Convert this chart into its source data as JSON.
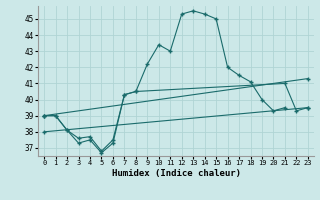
{
  "xlabel": "Humidex (Indice chaleur)",
  "background_color": "#cce8e8",
  "grid_color": "#b0d4d4",
  "line_color": "#1a6b6b",
  "xlim": [
    -0.5,
    23.5
  ],
  "ylim": [
    36.5,
    45.8
  ],
  "yticks": [
    37,
    38,
    39,
    40,
    41,
    42,
    43,
    44,
    45
  ],
  "xticks": [
    0,
    1,
    2,
    3,
    4,
    5,
    6,
    7,
    8,
    9,
    10,
    11,
    12,
    13,
    14,
    15,
    16,
    17,
    18,
    19,
    20,
    21,
    22,
    23
  ],
  "lines": [
    {
      "x": [
        0,
        1,
        2,
        3,
        4,
        5,
        6,
        7,
        8,
        9,
        10,
        11,
        12,
        13,
        14,
        15,
        16,
        17,
        18,
        19,
        20,
        21,
        22,
        23
      ],
      "y": [
        39.0,
        39.0,
        38.1,
        37.3,
        37.5,
        36.7,
        37.3,
        40.3,
        40.5,
        42.2,
        43.4,
        43.0,
        45.3,
        45.5,
        45.3,
        45.0,
        42.0,
        41.5,
        41.1,
        40.0,
        39.3,
        39.5,
        null,
        null
      ]
    },
    {
      "x": [
        0,
        23
      ],
      "y": [
        39.0,
        41.3
      ]
    },
    {
      "x": [
        0,
        23
      ],
      "y": [
        38.0,
        39.5
      ]
    },
    {
      "x": [
        0,
        1,
        2,
        3,
        4,
        5,
        6,
        7,
        8,
        21,
        22,
        23
      ],
      "y": [
        39.0,
        39.0,
        38.1,
        37.6,
        37.7,
        36.8,
        37.5,
        40.3,
        40.5,
        41.0,
        39.3,
        39.5
      ]
    }
  ]
}
